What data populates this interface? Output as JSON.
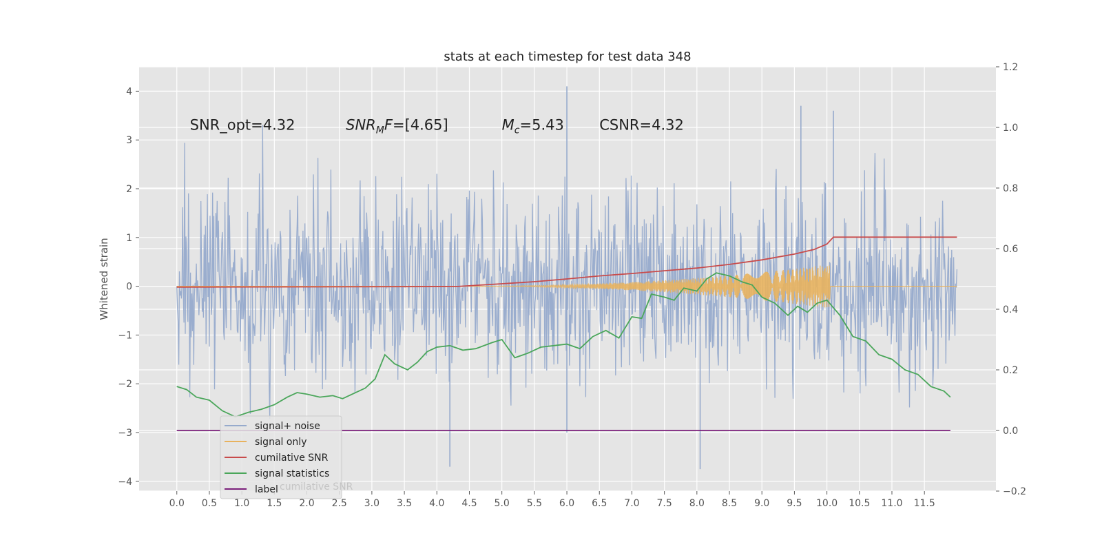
{
  "chart_data": {
    "type": "line",
    "title": "stats at each timestep for test data 348",
    "ylabel": "Whitened strain",
    "xlim": [
      -0.58,
      12.6
    ],
    "ylim": [
      -4.2,
      4.5
    ],
    "y2lim": [
      -0.2,
      1.2
    ],
    "grid": true,
    "legend_position": "lower-left",
    "x_ticks": [
      "0.0",
      "0.5",
      "1.0",
      "1.5",
      "2.0",
      "2.5",
      "3.0",
      "3.5",
      "4.0",
      "4.5",
      "5.0",
      "5.5",
      "6.0",
      "6.5",
      "7.0",
      "7.5",
      "8.0",
      "8.5",
      "9.0",
      "9.5",
      "10.0",
      "10.5",
      "11.0",
      "11.5"
    ],
    "y_ticks": [
      "−4",
      "−3",
      "−2",
      "−1",
      "0",
      "1",
      "2",
      "3",
      "4"
    ],
    "y2_ticks": [
      "−0.2",
      "0.0",
      "0.2",
      "0.4",
      "0.6",
      "0.8",
      "1.0",
      "1.2"
    ],
    "annotations": [
      {
        "text": "SNR_opt=4.32",
        "x": 0.2,
        "y": 3.32
      },
      {
        "text": "SNR_MF=[4.65]",
        "main": "SNR",
        "sub": "M",
        "rest": "F=[4.65]",
        "x": 2.6,
        "y": 3.32
      },
      {
        "text": "M_c=5.43",
        "main": "M",
        "sub": "c",
        "rest": "=5.43",
        "x": 5.0,
        "y": 3.32
      },
      {
        "text": "CSNR=4.32",
        "x": 6.5,
        "y": 3.32
      }
    ],
    "legend_overlap_text": "cumilative SNR",
    "series": [
      {
        "name": "signal+ noise",
        "color": "#96aacc",
        "axis": "left",
        "kind": "noise",
        "x_range": [
          0.0,
          12.0
        ],
        "band": [
          -2.8,
          3.7
        ],
        "samples": 1200,
        "std": 1.0,
        "spikes": [
          {
            "x": 6.0,
            "y": 4.1
          },
          {
            "x": 6.0,
            "y": -3.0
          },
          {
            "x": 9.6,
            "y": 3.7
          },
          {
            "x": 8.05,
            "y": -3.75
          },
          {
            "x": 10.1,
            "y": 3.6
          },
          {
            "x": 4.2,
            "y": -3.7
          }
        ]
      },
      {
        "name": "signal only",
        "color": "#e8b25e",
        "axis": "left",
        "kind": "chirp",
        "x_range": [
          4.3,
          10.05
        ],
        "amplitude_end": 0.45,
        "after_value": 0.0
      },
      {
        "name": "cumilative SNR",
        "color": "#c84b4b",
        "axis": "right",
        "x": [
          0.0,
          4.3,
          5.0,
          5.5,
          6.0,
          6.5,
          7.0,
          7.5,
          8.0,
          8.5,
          9.0,
          9.5,
          9.8,
          10.0,
          10.1,
          12.0
        ],
        "y": [
          0.473,
          0.475,
          0.484,
          0.491,
          0.5,
          0.51,
          0.518,
          0.527,
          0.536,
          0.548,
          0.563,
          0.582,
          0.597,
          0.615,
          0.638,
          0.638
        ]
      },
      {
        "name": "signal statistics",
        "color": "#4aa65a",
        "axis": "right",
        "x": [
          0.0,
          0.15,
          0.3,
          0.5,
          0.7,
          0.9,
          1.1,
          1.3,
          1.5,
          1.7,
          1.85,
          2.0,
          2.2,
          2.4,
          2.55,
          2.7,
          2.9,
          3.05,
          3.2,
          3.35,
          3.55,
          3.7,
          3.85,
          4.0,
          4.2,
          4.4,
          4.6,
          4.85,
          5.0,
          5.2,
          5.4,
          5.6,
          5.8,
          6.0,
          6.2,
          6.4,
          6.6,
          6.8,
          7.0,
          7.15,
          7.3,
          7.5,
          7.65,
          7.8,
          8.0,
          8.15,
          8.3,
          8.5,
          8.7,
          8.85,
          9.0,
          9.2,
          9.4,
          9.55,
          9.7,
          9.85,
          10.0,
          10.2,
          10.4,
          10.6,
          10.8,
          11.0,
          11.2,
          11.4,
          11.6,
          11.8,
          11.9
        ],
        "y": [
          0.145,
          0.135,
          0.11,
          0.1,
          0.065,
          0.045,
          0.06,
          0.07,
          0.085,
          0.11,
          0.125,
          0.12,
          0.11,
          0.115,
          0.105,
          0.12,
          0.14,
          0.17,
          0.25,
          0.22,
          0.2,
          0.225,
          0.26,
          0.275,
          0.28,
          0.265,
          0.27,
          0.29,
          0.3,
          0.24,
          0.255,
          0.275,
          0.28,
          0.285,
          0.27,
          0.31,
          0.33,
          0.305,
          0.375,
          0.37,
          0.45,
          0.44,
          0.43,
          0.47,
          0.46,
          0.5,
          0.52,
          0.51,
          0.49,
          0.48,
          0.44,
          0.42,
          0.38,
          0.41,
          0.39,
          0.42,
          0.43,
          0.38,
          0.31,
          0.295,
          0.25,
          0.235,
          0.2,
          0.185,
          0.145,
          0.13,
          0.11
        ]
      },
      {
        "name": "label",
        "color": "#7a1f7a",
        "axis": "right",
        "x": [
          0.0,
          11.9
        ],
        "y": [
          0.0,
          0.0
        ]
      }
    ]
  }
}
